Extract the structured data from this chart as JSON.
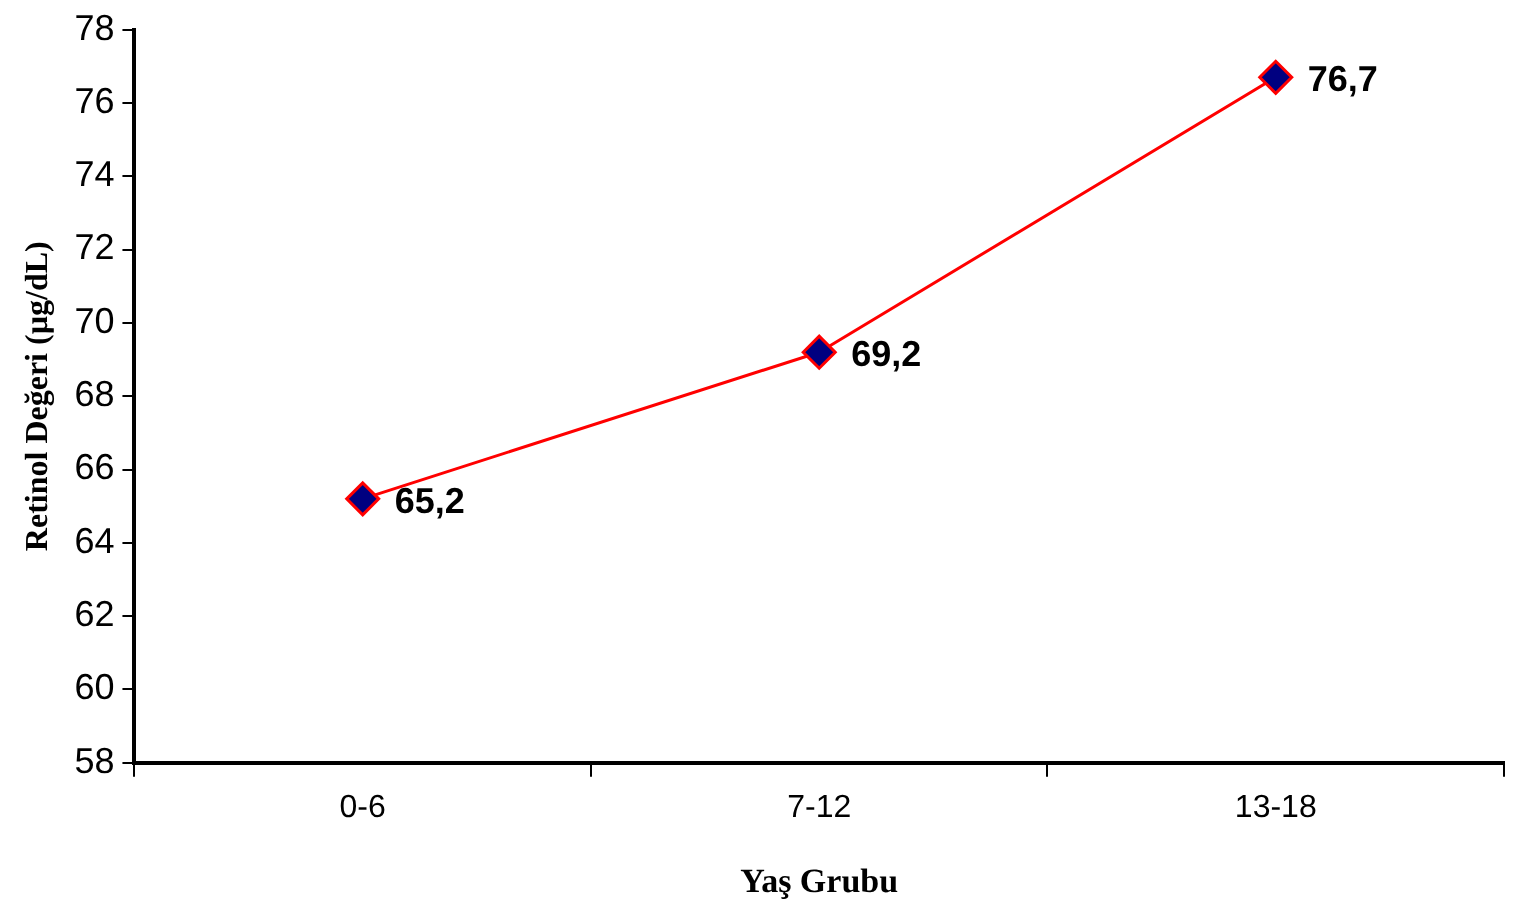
{
  "chart_data": {
    "type": "line",
    "xlabel": "Yaş Grubu",
    "ylabel": "Retinol Değeri (µg/dL)",
    "categories": [
      "0-6",
      "7-12",
      "13-18"
    ],
    "series": [
      {
        "color": "#ff0000",
        "values": [
          65.2,
          69.2,
          76.7
        ],
        "value_labels": [
          "65,2",
          "69,2",
          "76,7"
        ]
      }
    ],
    "ylim": [
      58,
      78
    ],
    "yticks": [
      58,
      60,
      62,
      64,
      66,
      68,
      70,
      72,
      74,
      76,
      78
    ],
    "marker": "diamond",
    "line_style": "solid",
    "grid": false,
    "legend": false
  }
}
